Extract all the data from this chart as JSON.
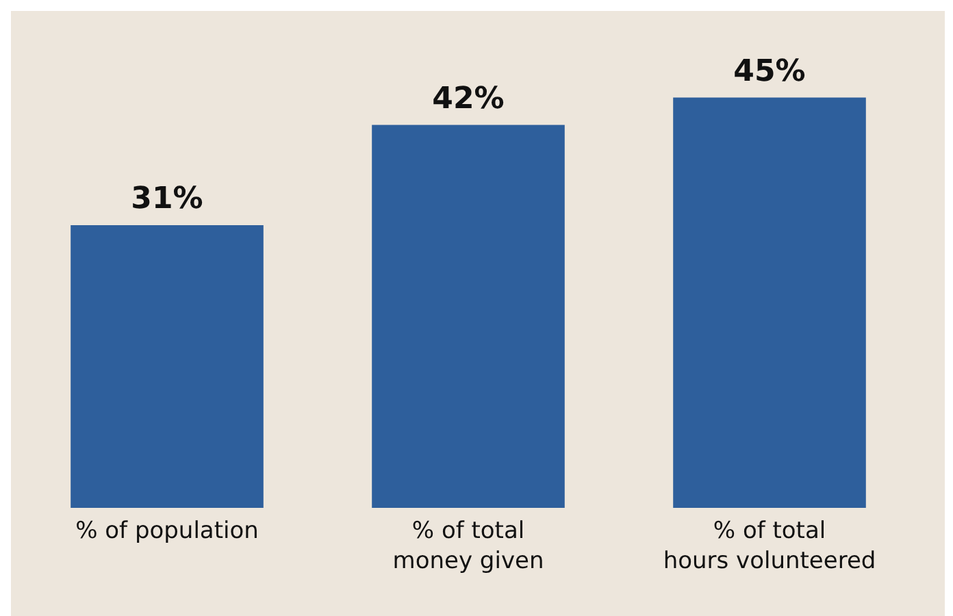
{
  "chart_data": {
    "type": "bar",
    "categories": [
      "% of population",
      "% of total\nmoney given",
      "% of total\nhours volunteered"
    ],
    "values": [
      31,
      42,
      45
    ],
    "value_labels": [
      "31%",
      "42%",
      "45%"
    ],
    "color": "#2e5f9c"
  }
}
